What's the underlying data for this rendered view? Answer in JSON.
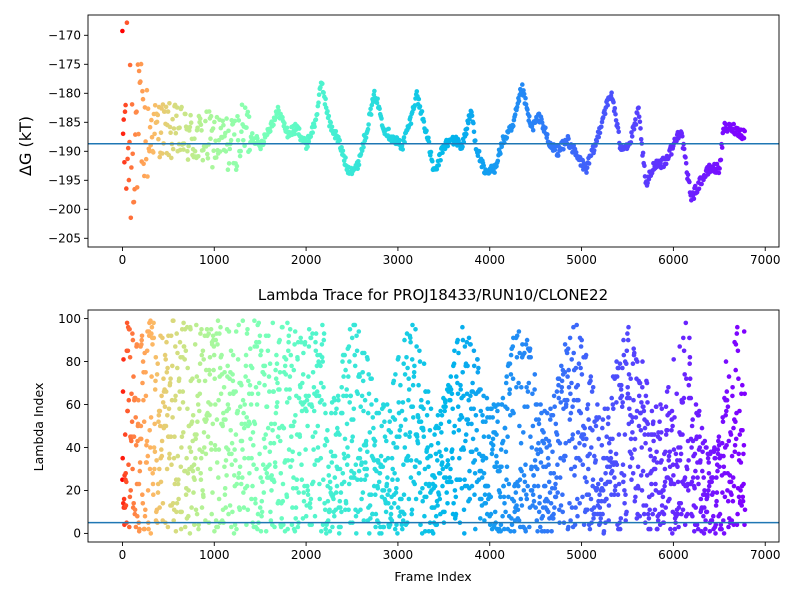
{
  "chart_data": [
    {
      "type": "scatter",
      "title": "",
      "xlabel": "",
      "ylabel": "ΔG (kT)",
      "xlim": [
        -375,
        7150
      ],
      "ylim": [
        -206.5,
        -166.5
      ],
      "xticks": [
        0,
        1000,
        2000,
        3000,
        4000,
        5000,
        6000,
        7000
      ],
      "yticks": [
        -205,
        -200,
        -195,
        -190,
        -185,
        -180,
        -175,
        -170
      ],
      "hline": -188.7,
      "hline_color": "#1f77b4",
      "colormap": "rainbow (red at start, violet at end)",
      "grid": false,
      "trend_points": [
        [
          0,
          -188
        ],
        [
          200,
          -187
        ],
        [
          400,
          -186
        ],
        [
          600,
          -187
        ],
        [
          800,
          -188
        ],
        [
          1000,
          -188
        ],
        [
          1200,
          -189
        ],
        [
          1350,
          -186
        ],
        [
          1500,
          -189
        ],
        [
          1600,
          -186
        ],
        [
          1700,
          -183
        ],
        [
          1800,
          -187
        ],
        [
          1900,
          -186
        ],
        [
          2000,
          -189
        ],
        [
          2100,
          -185
        ],
        [
          2170,
          -178
        ],
        [
          2250,
          -185
        ],
        [
          2350,
          -188
        ],
        [
          2450,
          -193
        ],
        [
          2550,
          -193
        ],
        [
          2650,
          -187
        ],
        [
          2750,
          -180
        ],
        [
          2850,
          -186
        ],
        [
          2950,
          -188
        ],
        [
          3050,
          -189
        ],
        [
          3150,
          -184
        ],
        [
          3200,
          -180
        ],
        [
          3300,
          -186
        ],
        [
          3400,
          -194
        ],
        [
          3500,
          -189
        ],
        [
          3600,
          -188
        ],
        [
          3700,
          -189
        ],
        [
          3800,
          -183
        ],
        [
          3850,
          -189
        ],
        [
          3950,
          -194
        ],
        [
          4050,
          -193
        ],
        [
          4150,
          -188
        ],
        [
          4250,
          -186
        ],
        [
          4350,
          -179
        ],
        [
          4450,
          -186
        ],
        [
          4550,
          -184
        ],
        [
          4650,
          -189
        ],
        [
          4750,
          -190
        ],
        [
          4850,
          -188
        ],
        [
          4950,
          -191
        ],
        [
          5050,
          -193
        ],
        [
          5150,
          -189
        ],
        [
          5250,
          -183
        ],
        [
          5330,
          -180
        ],
        [
          5420,
          -189
        ],
        [
          5520,
          -189
        ],
        [
          5620,
          -183
        ],
        [
          5700,
          -196
        ],
        [
          5800,
          -192
        ],
        [
          5900,
          -192
        ],
        [
          6000,
          -189
        ],
        [
          6080,
          -186
        ],
        [
          6150,
          -194
        ],
        [
          6200,
          -198
        ],
        [
          6300,
          -195
        ],
        [
          6400,
          -193
        ],
        [
          6500,
          -193
        ],
        [
          6550,
          -186
        ],
        [
          6650,
          -186
        ],
        [
          6750,
          -187
        ]
      ]
    },
    {
      "type": "scatter",
      "title": "Lambda Trace for PROJ18433/RUN10/CLONE22",
      "xlabel": "Frame Index",
      "ylabel": "Lambda Index",
      "xlim": [
        -375,
        7150
      ],
      "ylim": [
        -4,
        104
      ],
      "xticks": [
        0,
        1000,
        2000,
        3000,
        4000,
        5000,
        6000,
        7000
      ],
      "yticks": [
        0,
        20,
        40,
        60,
        80,
        100
      ],
      "hline": 5,
      "hline_color": "#1f77b4",
      "colormap": "rainbow (red at start, violet at end)",
      "grid": false,
      "frame_range": [
        0,
        6780
      ],
      "lambda_range": [
        0,
        99
      ]
    }
  ]
}
